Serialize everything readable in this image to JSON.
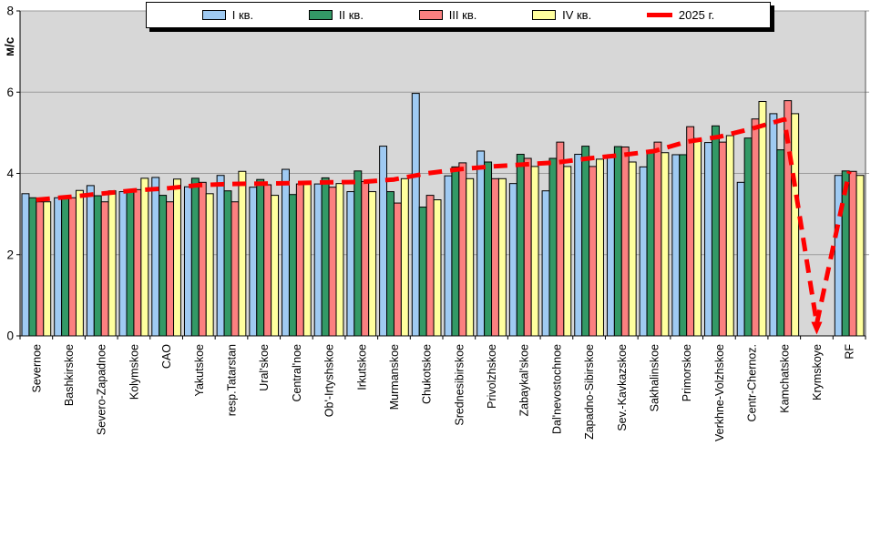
{
  "chart_data": {
    "type": "bar",
    "title": "",
    "ylabel": "м/с",
    "ylim": [
      0,
      8
    ],
    "yticks": [
      0,
      2,
      4,
      6,
      8
    ],
    "grid": true,
    "legend_position": "top",
    "plot_bg": "#d7d7d7",
    "gridline_color": "#9b9b9b",
    "axis_color": "#000000",
    "categories": [
      "Severnoe",
      "Bashkirskoe",
      "Severo-Zapadnoe",
      "Kolymskoe",
      "CAO",
      "Yakutskoe",
      "resp.Tatarstan",
      "Ural'skoe",
      "Central'noe",
      "Ob'-Irtyshskoe",
      "Irkutskoe",
      "Murmanskoe",
      "Chukotskoe",
      "Srednesibirskoe",
      "Privolzhskoe",
      "Zabaykal'skoe",
      "Dal'nevostochnoe",
      "Zapadno-Sibirskoe",
      "Sev.-Kavkazskoe",
      "Sakhalinskoe",
      "Primorskoe",
      "Verkhne-Volzhskoe",
      "Centr-Chernoz.",
      "Kamchatskoe",
      "Krymskoye",
      "RF"
    ],
    "series": [
      {
        "name": "I кв.",
        "color": "#9fcaf2",
        "values": [
          3.5,
          3.4,
          3.7,
          3.55,
          3.9,
          3.67,
          3.95,
          3.66,
          4.1,
          3.74,
          3.55,
          4.67,
          5.97,
          3.94,
          4.55,
          3.75,
          3.57,
          4.47,
          4.46,
          4.16,
          4.46,
          4.76,
          3.78,
          5.47,
          null,
          3.95
        ]
      },
      {
        "name": "II кв.",
        "color": "#339966",
        "values": [
          3.4,
          3.4,
          3.45,
          3.55,
          3.46,
          3.88,
          3.57,
          3.85,
          3.48,
          3.89,
          4.06,
          3.55,
          3.17,
          4.16,
          4.28,
          4.47,
          4.37,
          4.67,
          4.66,
          4.56,
          4.46,
          5.17,
          4.87,
          4.58,
          null,
          4.06
        ]
      },
      {
        "name": "III кв.",
        "color": "#fb8080",
        "values": [
          3.3,
          3.4,
          3.3,
          3.6,
          3.3,
          3.78,
          3.3,
          3.72,
          3.74,
          3.66,
          3.8,
          3.27,
          3.46,
          4.26,
          3.87,
          4.37,
          4.77,
          4.17,
          4.65,
          4.77,
          5.15,
          4.77,
          5.34,
          5.79,
          null,
          4.05
        ]
      },
      {
        "name": "IV кв.",
        "color": "#ffff9e",
        "values": [
          3.3,
          3.58,
          3.57,
          3.88,
          3.86,
          3.5,
          4.05,
          3.46,
          3.75,
          3.75,
          3.55,
          3.87,
          3.35,
          3.87,
          3.87,
          4.17,
          4.17,
          4.35,
          4.28,
          4.51,
          4.86,
          4.93,
          5.77,
          5.47,
          null,
          3.95
        ]
      }
    ],
    "line_series": {
      "name": "2025 г.",
      "color": "#ff0000",
      "dashed": true,
      "arrow_at_category": "Krymskoye",
      "values": [
        3.35,
        3.42,
        3.5,
        3.58,
        3.63,
        3.71,
        3.74,
        3.75,
        3.76,
        3.78,
        3.79,
        3.85,
        4.0,
        4.1,
        4.17,
        4.22,
        4.27,
        4.37,
        4.45,
        4.55,
        4.78,
        4.9,
        5.1,
        5.33,
        0.3,
        4.05
      ]
    }
  }
}
